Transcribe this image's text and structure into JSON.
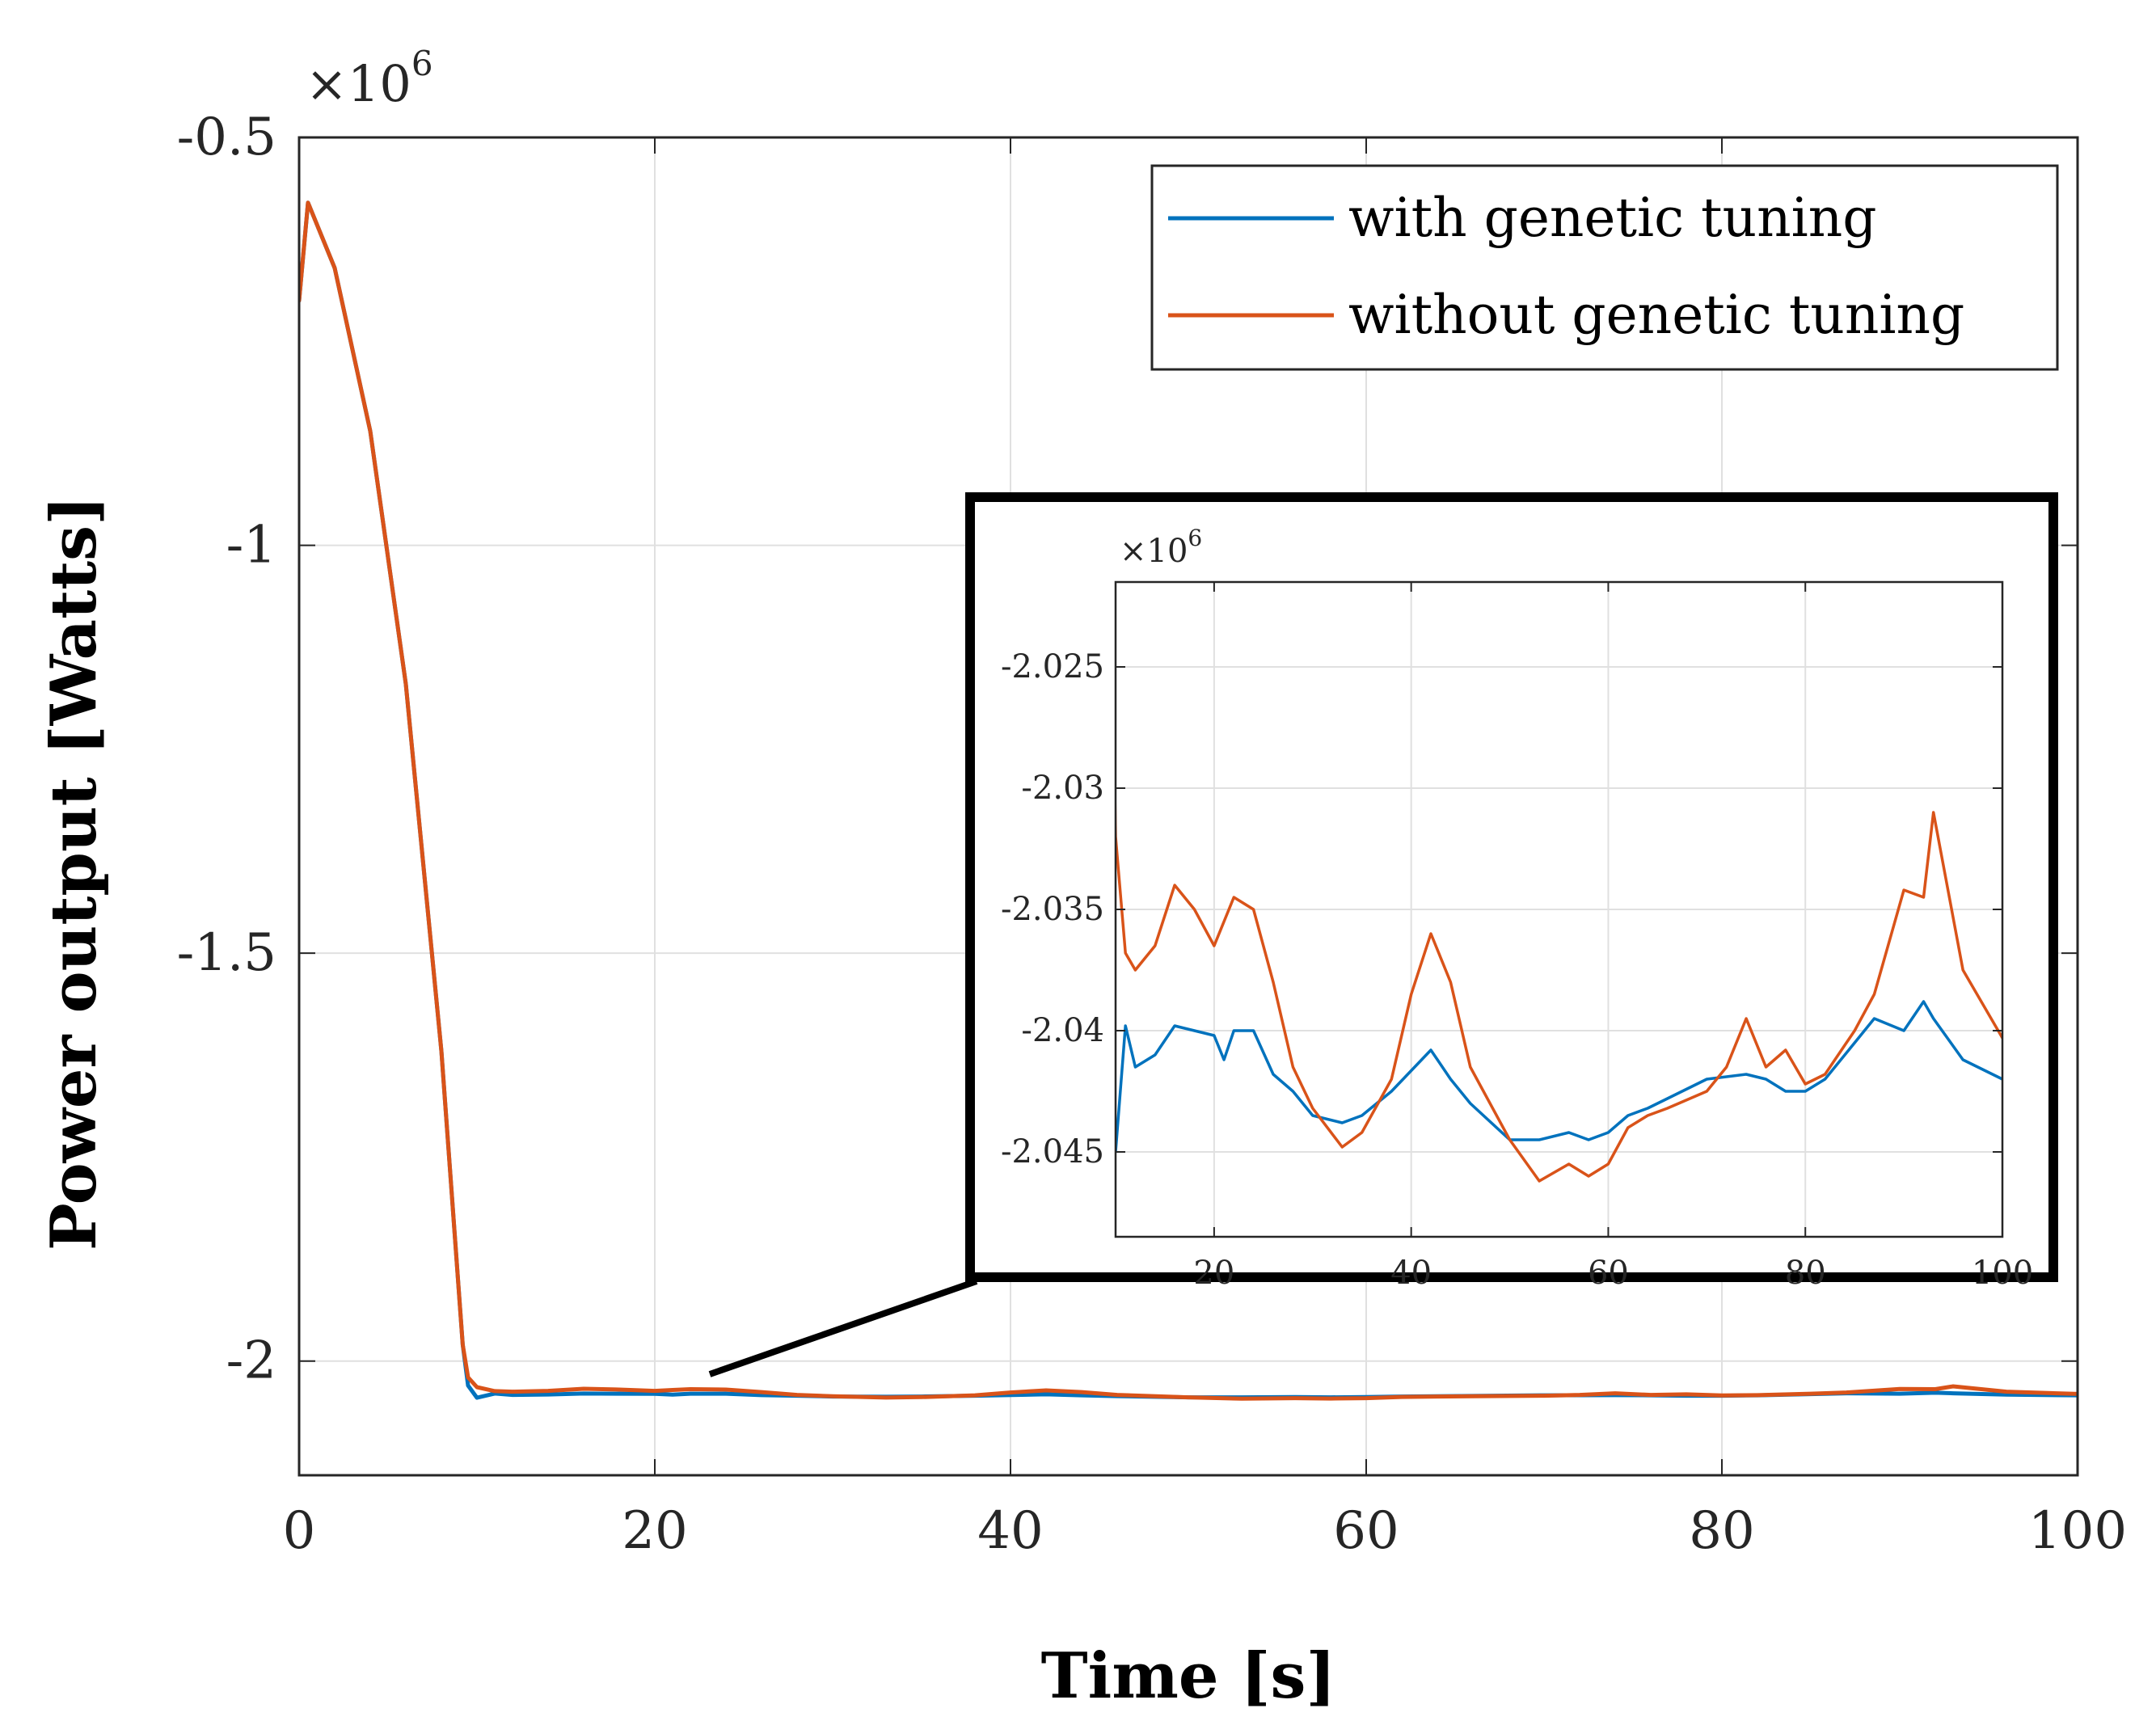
{
  "chart_data": [
    {
      "id": "main",
      "type": "line",
      "xlabel": "Time [s]",
      "ylabel": "Power output [Watts]",
      "xlim": [
        0,
        100
      ],
      "ylim": [
        -2.14,
        -0.5
      ],
      "y_scale_label": "×10",
      "y_scale_exp": "6",
      "xticks": [
        0,
        20,
        40,
        60,
        80,
        100
      ],
      "yticks": [
        -0.5,
        -1,
        -1.5,
        -2
      ],
      "ytick_labels": [
        "-0.5",
        "-1",
        "-1.5",
        "-2"
      ],
      "grid": true,
      "legend": {
        "position": "top-right",
        "entries": [
          "with genetic tuning",
          "without genetic tuning"
        ]
      },
      "series": [
        {
          "name": "with genetic tuning",
          "color": "#0072BD",
          "x": [
            0,
            0.5,
            2,
            4,
            6,
            8,
            9.2,
            9.5,
            10,
            11,
            12,
            14,
            16,
            18,
            20,
            21,
            22,
            24,
            26,
            28,
            30,
            33,
            35,
            38,
            42,
            44,
            46,
            50,
            53,
            56,
            58,
            60,
            62,
            64,
            66,
            70,
            74,
            76,
            78,
            80,
            82,
            85,
            87,
            90,
            92,
            93,
            96,
            100
          ],
          "y": [
            -0.7,
            -0.58,
            -0.66,
            -0.86,
            -1.17,
            -1.62,
            -1.98,
            -2.03,
            -2.045,
            -2.0398,
            -2.0415,
            -2.041,
            -2.0398,
            -2.04,
            -2.0402,
            -2.0412,
            -2.04,
            -2.04,
            -2.0418,
            -2.0425,
            -2.0435,
            -2.0438,
            -2.0435,
            -2.0425,
            -2.0408,
            -2.042,
            -2.043,
            -2.0445,
            -2.0445,
            -2.0442,
            -2.0445,
            -2.0442,
            -2.0435,
            -2.0432,
            -2.0428,
            -2.042,
            -2.0418,
            -2.042,
            -2.0425,
            -2.0425,
            -2.042,
            -2.0405,
            -2.0395,
            -2.04,
            -2.0388,
            -2.0395,
            -2.0412,
            -2.042
          ]
        },
        {
          "name": "without genetic tuning",
          "color": "#D95319",
          "x": [
            0,
            0.5,
            2,
            4,
            6,
            8,
            9.2,
            9.5,
            10,
            11,
            12,
            13,
            14,
            16,
            18,
            20,
            21,
            22,
            24,
            26,
            28,
            30,
            33,
            35,
            38,
            40,
            42,
            44,
            46,
            50,
            53,
            56,
            58,
            60,
            62,
            64,
            66,
            70,
            72,
            74,
            76,
            78,
            80,
            82,
            85,
            87,
            90,
            92,
            93,
            96,
            100
          ],
          "y": [
            -0.7,
            -0.58,
            -0.66,
            -0.86,
            -1.17,
            -1.62,
            -1.98,
            -2.02,
            -2.032,
            -2.0368,
            -2.0375,
            -2.037,
            -2.0365,
            -2.034,
            -2.035,
            -2.0365,
            -2.0355,
            -2.0345,
            -2.035,
            -2.038,
            -2.0415,
            -2.0432,
            -2.0448,
            -2.0442,
            -2.042,
            -2.0385,
            -2.036,
            -2.038,
            -2.0415,
            -2.0445,
            -2.0462,
            -2.0455,
            -2.046,
            -2.0455,
            -2.044,
            -2.0435,
            -2.0432,
            -2.0425,
            -2.0415,
            -2.0395,
            -2.0415,
            -2.0408,
            -2.0422,
            -2.0418,
            -2.04,
            -2.0385,
            -2.0342,
            -2.0345,
            -2.031,
            -2.0375,
            -2.0403
          ]
        }
      ]
    },
    {
      "id": "inset",
      "type": "line",
      "xlim": [
        10,
        100
      ],
      "ylim": [
        -2.0485,
        -2.0215
      ],
      "xticks": [
        20,
        40,
        60,
        80,
        100
      ],
      "yticks": [
        -2.025,
        -2.03,
        -2.035,
        -2.04,
        -2.045
      ],
      "ytick_labels": [
        "-2.025",
        "-2.03",
        "-2.035",
        "-2.04",
        "-2.045"
      ],
      "y_scale_label": "×10",
      "y_scale_exp": "6",
      "grid": true,
      "zoom_source": "main plot steady state (t > 10 s)"
    }
  ]
}
